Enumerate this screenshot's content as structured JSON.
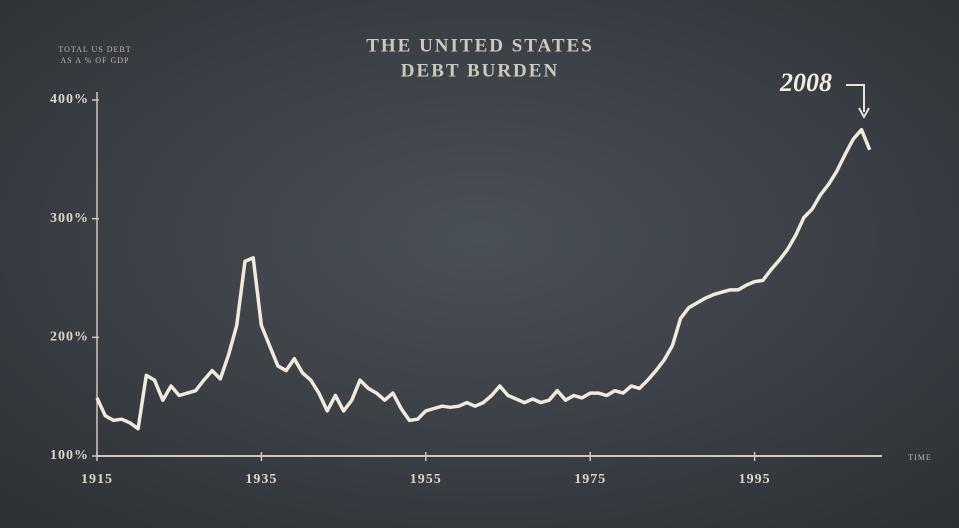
{
  "chart_data": {
    "type": "line",
    "title": [
      "THE UNITED STATES",
      "DEBT BURDEN"
    ],
    "y_label": [
      "TOTAL US DEBT",
      "AS A % OF GDP"
    ],
    "x_label": "TIME",
    "annotation": "2008",
    "color": "#f1eadb",
    "x": [
      1915,
      1916,
      1917,
      1918,
      1919,
      1920,
      1921,
      1922,
      1923,
      1924,
      1925,
      1926,
      1927,
      1928,
      1929,
      1930,
      1931,
      1932,
      1933,
      1934,
      1935,
      1936,
      1937,
      1938,
      1939,
      1940,
      1941,
      1942,
      1943,
      1944,
      1945,
      1946,
      1947,
      1948,
      1949,
      1950,
      1951,
      1952,
      1953,
      1954,
      1955,
      1956,
      1957,
      1958,
      1959,
      1960,
      1961,
      1962,
      1963,
      1964,
      1965,
      1966,
      1967,
      1968,
      1969,
      1970,
      1971,
      1972,
      1973,
      1974,
      1975,
      1976,
      1977,
      1978,
      1979,
      1980,
      1981,
      1982,
      1983,
      1984,
      1985,
      1986,
      1987,
      1988,
      1989,
      1990,
      1991,
      1992,
      1993,
      1994,
      1995,
      1996,
      1997,
      1998,
      1999,
      2000,
      2001,
      2002,
      2003,
      2004,
      2005,
      2006,
      2007,
      2008,
      2009
    ],
    "values": [
      149,
      134,
      130,
      131,
      128,
      123,
      168,
      164,
      147,
      159,
      151,
      153,
      155,
      164,
      172,
      165,
      185,
      210,
      264,
      267,
      210,
      193,
      176,
      172,
      182,
      170,
      164,
      153,
      138,
      151,
      138,
      147,
      164,
      157,
      153,
      147,
      153,
      140,
      130,
      131,
      138,
      140,
      142,
      141,
      142,
      145,
      142,
      145,
      151,
      159,
      151,
      148,
      145,
      148,
      145,
      147,
      155,
      147,
      151,
      149,
      153,
      153,
      151,
      155,
      153,
      159,
      157,
      164,
      172,
      181,
      193,
      216,
      225,
      229,
      233,
      236,
      238,
      240,
      240,
      244,
      247,
      248,
      257,
      265,
      274,
      286,
      301,
      308,
      320,
      329,
      340,
      354,
      367,
      375,
      358
    ],
    "xlim": [
      1915,
      2010
    ],
    "xticks": [
      1915,
      1935,
      1955,
      1975,
      1995
    ],
    "ylim": [
      100,
      400
    ],
    "yticks": [
      {
        "value": 100,
        "label": "100%"
      },
      {
        "value": 200,
        "label": "200%"
      },
      {
        "value": 300,
        "label": "300%"
      },
      {
        "value": 400,
        "label": "400%"
      }
    ]
  }
}
